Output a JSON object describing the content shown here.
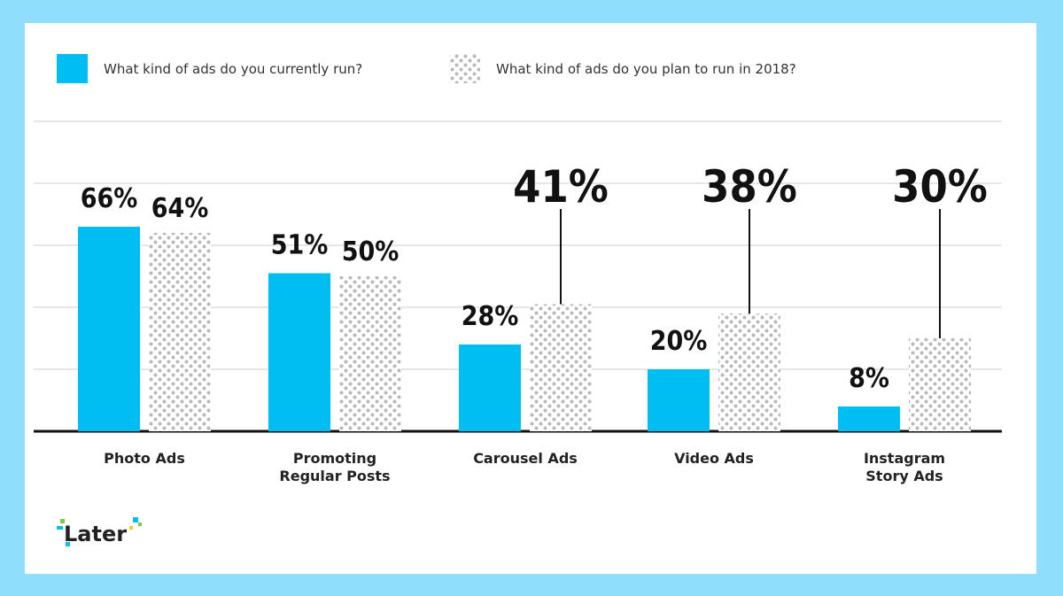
{
  "colors": {
    "frame": "#8fdffc",
    "current": "#00bdf2",
    "plan_dots": "#b9b9b9",
    "grid": "#e6e6e6",
    "axis": "#111111"
  },
  "logo": {
    "text": "Later"
  },
  "chart_data": {
    "type": "bar",
    "title": "",
    "xlabel": "",
    "ylabel": "",
    "ylim": [
      0,
      100
    ],
    "legend_position": "top-left",
    "grid": true,
    "categories": [
      "Photo Ads",
      "Promoting Regular Posts",
      "Carousel Ads",
      "Video Ads",
      "Instagram Story Ads"
    ],
    "category_lines": [
      [
        "Photo Ads"
      ],
      [
        "Promoting",
        "Regular Posts"
      ],
      [
        "Carousel Ads"
      ],
      [
        "Video Ads"
      ],
      [
        "Instagram",
        "Story Ads"
      ]
    ],
    "series": [
      {
        "name": "What kind of ads do you currently run?",
        "values": [
          66,
          51,
          28,
          20,
          8
        ],
        "labels": [
          "66%",
          "51%",
          "28%",
          "20%",
          "8%"
        ]
      },
      {
        "name": "What kind of ads do you plan to run in 2018?",
        "values": [
          64,
          50,
          41,
          38,
          30
        ],
        "labels": [
          "64%",
          "50%",
          "41%",
          "38%",
          "30%"
        ],
        "emphasized": [
          false,
          false,
          true,
          true,
          true
        ]
      }
    ]
  }
}
